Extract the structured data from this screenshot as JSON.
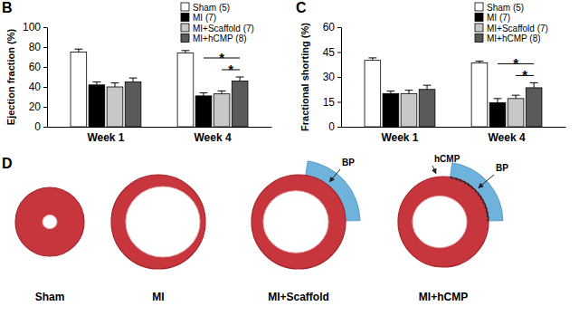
{
  "chart_data": [
    {
      "type": "bar",
      "title": "B",
      "y_label": "Ejection fraction (%)",
      "categories": [
        "Week 1",
        "Week 4"
      ],
      "series": [
        {
          "name": "Sham (5)",
          "color": "#ffffff",
          "values": [
            75,
            74
          ],
          "errors": [
            3,
            2.5
          ]
        },
        {
          "name": "MI (7)",
          "color": "#000000",
          "values": [
            42,
            31
          ],
          "errors": [
            3,
            3
          ]
        },
        {
          "name": "MI+Scaffold (7)",
          "color": "#c8c8c8",
          "values": [
            40,
            33
          ],
          "errors": [
            4,
            3
          ]
        },
        {
          "name": "MI+hCMP (8)",
          "color": "#5a5a5a",
          "values": [
            45,
            46
          ],
          "errors": [
            4,
            4
          ]
        }
      ],
      "ylim": [
        0,
        100
      ],
      "yticks": [
        0,
        20,
        40,
        60,
        80,
        100
      ],
      "grid": false,
      "legend": "upper right",
      "annotations": [
        {
          "text": "*",
          "category": "Week 4",
          "between": [
            "MI (7)",
            "MI+hCMP (8)"
          ]
        },
        {
          "text": "*",
          "category": "Week 4",
          "between": [
            "MI+Scaffold (7)",
            "MI+hCMP (8)"
          ]
        }
      ]
    },
    {
      "type": "bar",
      "title": "C",
      "y_label": "Fractional shorting (%)",
      "categories": [
        "Week 1",
        "Week 4"
      ],
      "series": [
        {
          "name": "Sham (5)",
          "color": "#ffffff",
          "values": [
            40,
            38.5
          ],
          "errors": [
            1.5,
            1
          ]
        },
        {
          "name": "MI (7)",
          "color": "#000000",
          "values": [
            20,
            14.5
          ],
          "errors": [
            1.5,
            2.5
          ]
        },
        {
          "name": "MI+Scaffold (7)",
          "color": "#c8c8c8",
          "values": [
            20,
            17
          ],
          "errors": [
            2,
            2
          ]
        },
        {
          "name": "MI+hCMP (8)",
          "color": "#5a5a5a",
          "values": [
            22.5,
            23.5
          ],
          "errors": [
            2.5,
            3
          ]
        }
      ],
      "ylim": [
        0,
        60
      ],
      "yticks": [
        0,
        15,
        30,
        45,
        60
      ],
      "grid": false,
      "legend": "upper right",
      "annotations": [
        {
          "text": "*",
          "category": "Week 4",
          "between": [
            "MI (7)",
            "MI+hCMP (8)"
          ]
        },
        {
          "text": "*",
          "category": "Week 4",
          "between": [
            "MI+Scaffold (7)",
            "MI+hCMP (8)"
          ]
        }
      ]
    }
  ],
  "panel_d": {
    "label": "D",
    "images": [
      "Sham",
      "MI",
      "MI+Scaffold",
      "MI+hCMP"
    ],
    "annotations": [
      {
        "image": "MI+Scaffold",
        "text": "BP"
      },
      {
        "image": "MI+hCMP",
        "text": "hCMP"
      },
      {
        "image": "MI+hCMP",
        "text": "BP"
      }
    ]
  }
}
